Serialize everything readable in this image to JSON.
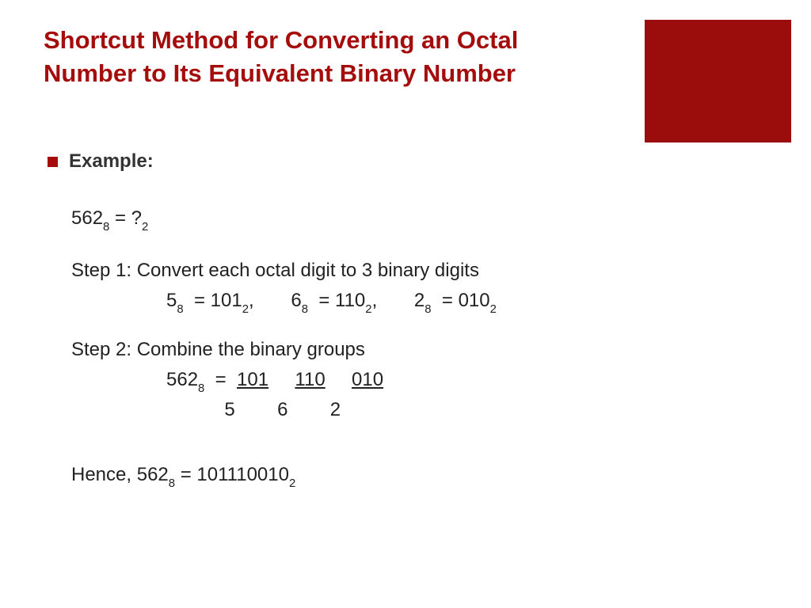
{
  "colors": {
    "brand": "#a50c0c",
    "box": "#9b0c0c",
    "text": "#222222",
    "bg": "#ffffff"
  },
  "title": "Shortcut Method for Converting an Octal Number to Its Equivalent Binary Number",
  "example_label": "Example:",
  "problem": {
    "value": "562",
    "from_base": "8",
    "equals": " = ?",
    "to_base": "2"
  },
  "step1": {
    "label": "Step 1:  Convert each octal digit to 3 binary digits",
    "conversions": [
      {
        "oct": "5",
        "oct_base": "8",
        "bin": "101",
        "bin_base": "2"
      },
      {
        "oct": "6",
        "oct_base": "8",
        "bin": "110",
        "bin_base": "2"
      },
      {
        "oct": "2",
        "oct_base": "8",
        "bin": "010",
        "bin_base": "2"
      }
    ]
  },
  "step2": {
    "label": "Step 2:  Combine the binary groups",
    "lhs": "562",
    "lhs_base": "8",
    "groups": [
      "101",
      "110",
      "010"
    ],
    "digits": [
      "5",
      "6",
      "2"
    ]
  },
  "result": {
    "prefix": "Hence, ",
    "oct": "562",
    "oct_base": "8",
    "equals": " = ",
    "bin": "101110010",
    "bin_base": "2"
  }
}
